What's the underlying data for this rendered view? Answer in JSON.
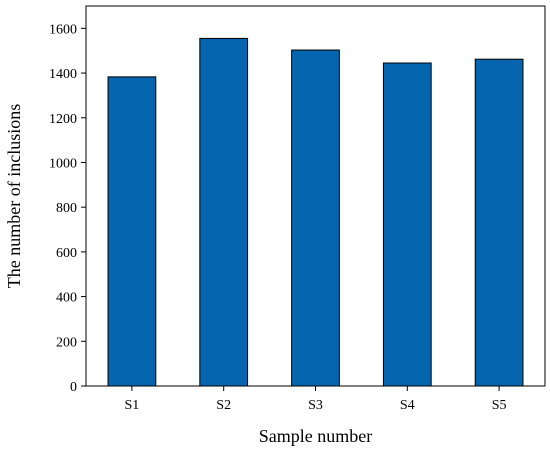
{
  "chart_data": {
    "type": "bar",
    "title": "",
    "xlabel": "Sample number",
    "ylabel": "The number of inclusions",
    "categories": [
      "S1",
      "S2",
      "S3",
      "S4",
      "S5"
    ],
    "values": [
      1383,
      1555,
      1503,
      1445,
      1462
    ],
    "ylim": [
      0,
      1700
    ],
    "yticks": [
      0,
      200,
      400,
      600,
      800,
      1000,
      1200,
      1400,
      1600
    ],
    "bar_color": "#0565ae",
    "grid": false,
    "legend": "none"
  }
}
